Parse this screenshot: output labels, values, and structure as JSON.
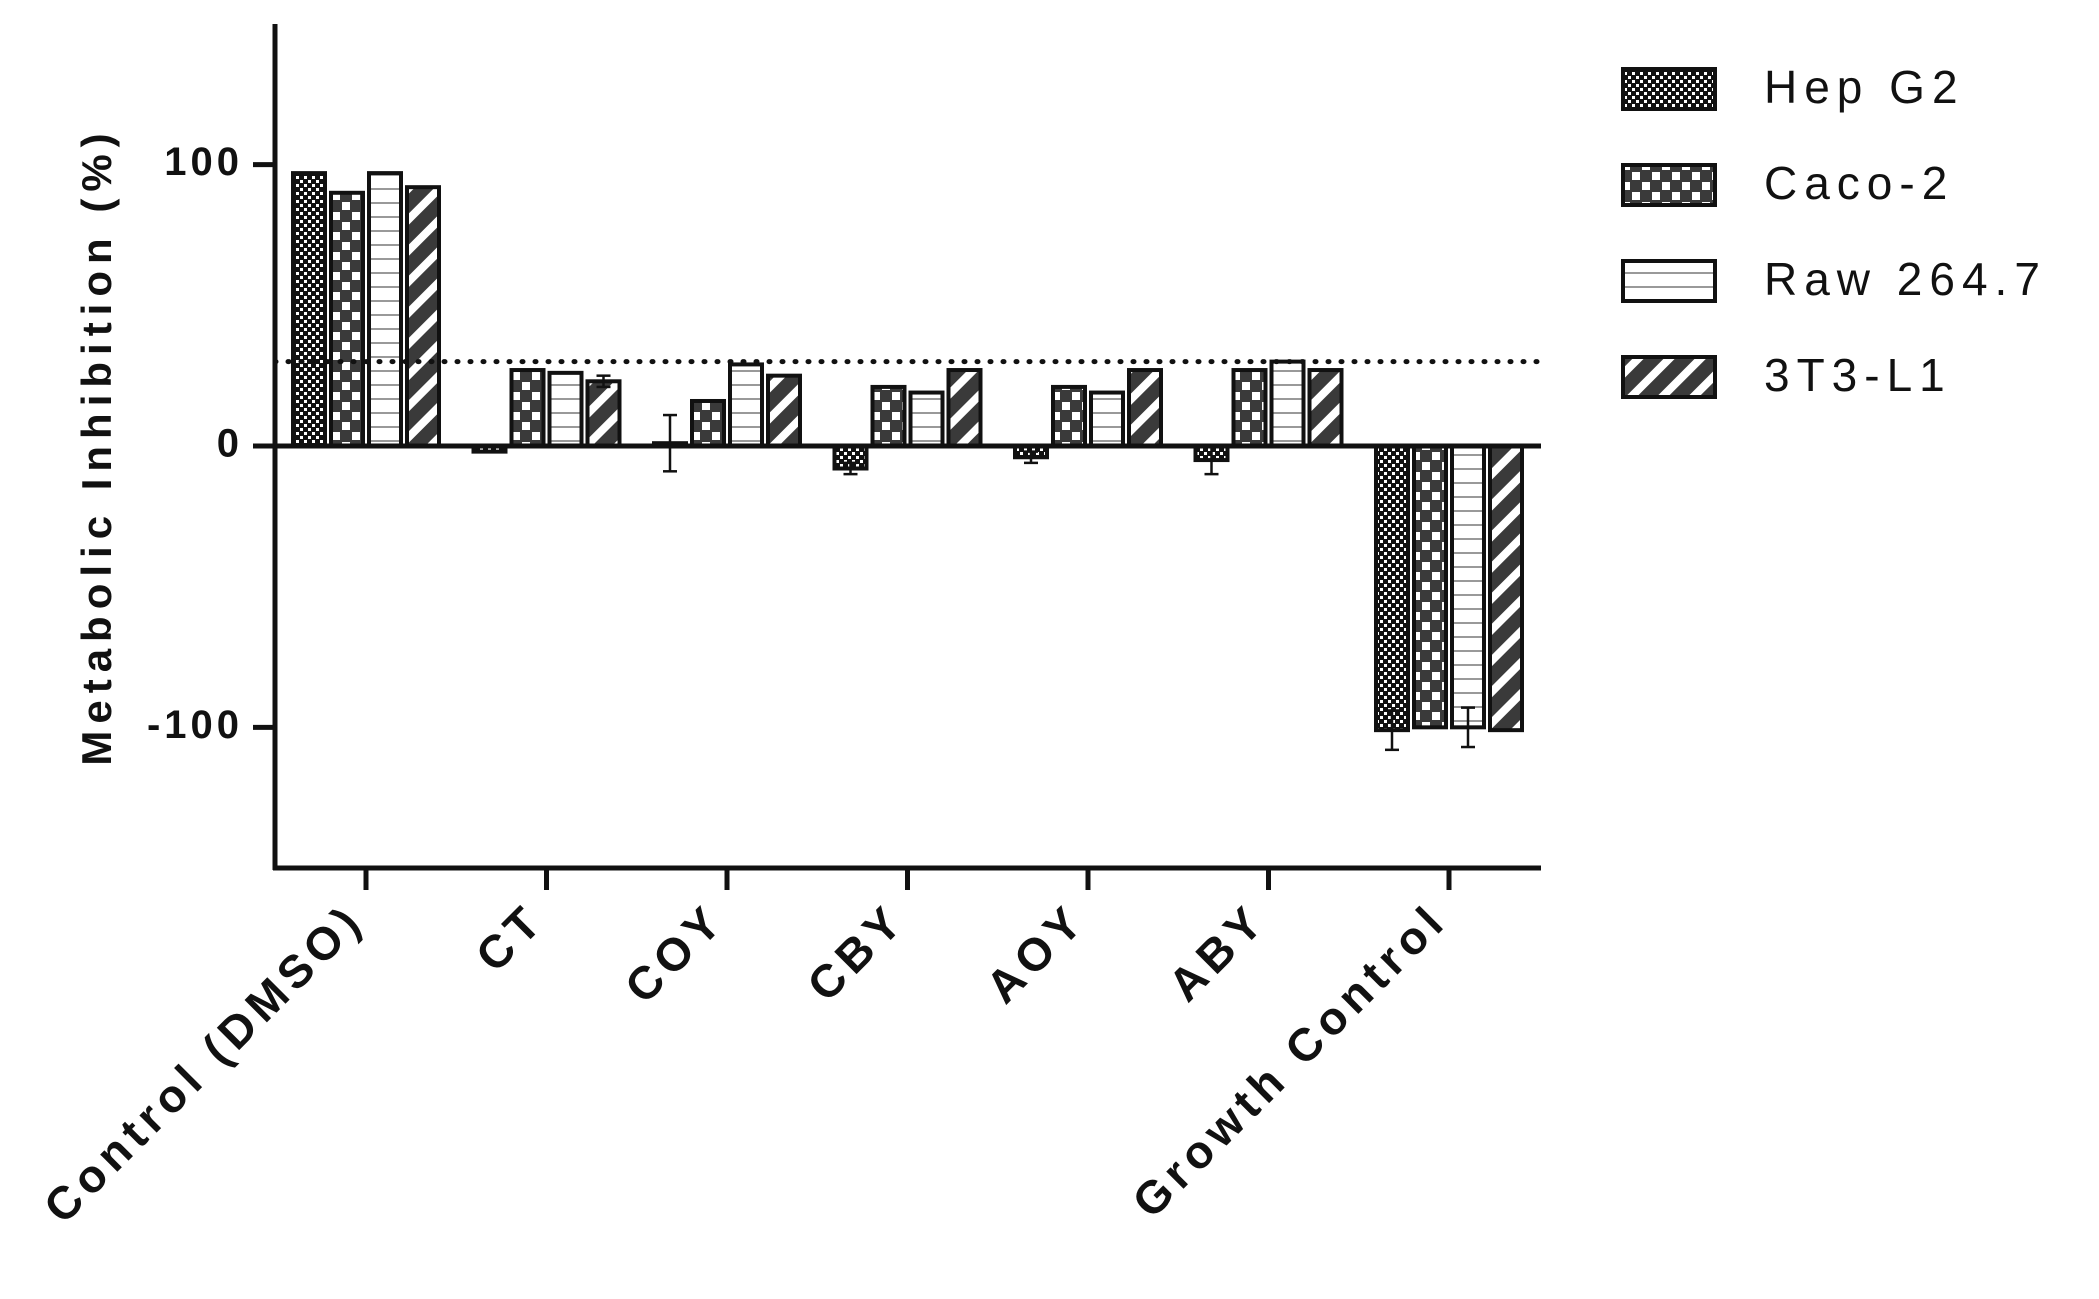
{
  "chart_data": {
    "type": "bar",
    "y_label": "Metabolic Inhibition (%)",
    "categories": [
      "Control (DMSO)",
      "CT",
      "COY",
      "CBY",
      "AOY",
      "ABY",
      "Growth Control"
    ],
    "series": [
      {
        "name": "Hep G2",
        "color": "#111111",
        "values": [
          97,
          -2,
          1,
          -8,
          -4,
          -5,
          -101
        ],
        "errors": [
          null,
          null,
          10,
          2,
          2,
          5,
          7
        ]
      },
      {
        "name": "Caco-2",
        "color": "#3a3a3a",
        "values": [
          90,
          27,
          16,
          21,
          21,
          27,
          -100
        ],
        "errors": [
          null,
          null,
          null,
          null,
          null,
          null,
          null
        ]
      },
      {
        "name": "Raw 264.7",
        "color": "#ffffff",
        "values": [
          97,
          26,
          29,
          19,
          19,
          30,
          -100
        ],
        "errors": [
          null,
          null,
          null,
          null,
          null,
          null,
          7
        ]
      },
      {
        "name": "3T3-L1",
        "color": "#3a3a3a",
        "values": [
          92,
          23,
          25,
          27,
          27,
          27,
          -101
        ],
        "errors": [
          null,
          2,
          null,
          null,
          null,
          null,
          null
        ]
      }
    ],
    "reference_line": 30,
    "ylim": [
      -150,
      150
    ],
    "yticks": [
      -100,
      0,
      100
    ],
    "legend": "right"
  }
}
